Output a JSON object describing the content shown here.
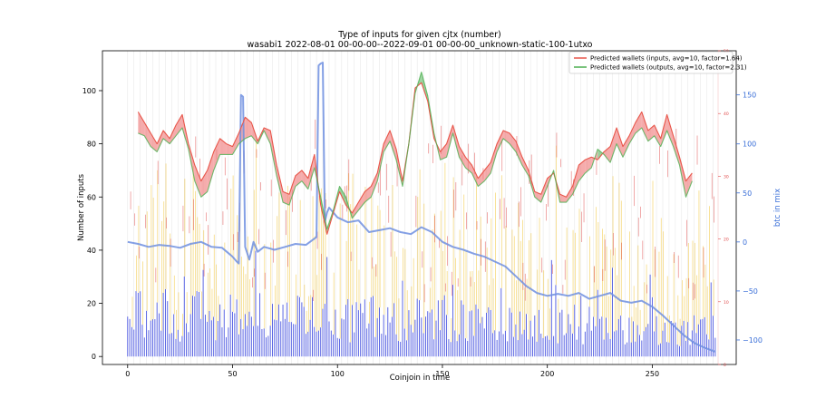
{
  "chart_data": {
    "type": "line",
    "title": "Type of inputs for given cjtx (number)",
    "subtitle": "wasabi1 2022-08-01 00-00-00--2022-09-01 00-00-00_unknown-static-100-1utxo",
    "xlabel": "Coinjoin in time",
    "ylabel": "Number of inputs",
    "y2label": "btc in mix",
    "xlim": [
      -12,
      290
    ],
    "ylim": [
      -3,
      115
    ],
    "y2lim": [
      -125,
      195
    ],
    "y3lim": [
      0,
      50
    ],
    "xticks": [
      0,
      50,
      100,
      150,
      200,
      250
    ],
    "yticks": [
      0,
      20,
      40,
      60,
      80,
      100
    ],
    "y2ticks": [
      -100,
      -50,
      0,
      50,
      100,
      150
    ],
    "y2ticklabels": [
      "−100",
      "−50",
      "0",
      "50",
      "100",
      "150"
    ],
    "y3ticks": [
      0,
      10,
      20,
      30,
      40,
      50
    ],
    "legend_position": "top-right",
    "series": [
      {
        "name": "Predicted wallets (inputs, avg=10, factor=1.64)",
        "color": "#e8564a",
        "x": [
          5,
          8,
          11,
          14,
          17,
          20,
          23,
          26,
          29,
          32,
          35,
          38,
          41,
          44,
          47,
          50,
          53,
          56,
          59,
          62,
          65,
          68,
          71,
          74,
          77,
          80,
          83,
          86,
          89,
          92,
          95,
          98,
          101,
          104,
          107,
          110,
          113,
          116,
          119,
          122,
          125,
          128,
          131,
          134,
          137,
          140,
          143,
          146,
          149,
          152,
          155,
          158,
          161,
          164,
          167,
          170,
          173,
          176,
          179,
          182,
          185,
          188,
          191,
          194,
          197,
          200,
          203,
          206,
          209,
          212,
          215,
          218,
          221,
          224,
          227,
          230,
          233,
          236,
          239,
          242,
          245,
          248,
          251,
          254,
          257,
          260,
          263,
          266,
          269
        ],
        "y": [
          92,
          88,
          84,
          80,
          85,
          82,
          87,
          91,
          80,
          72,
          66,
          70,
          77,
          82,
          80,
          79,
          84,
          90,
          88,
          81,
          86,
          85,
          72,
          62,
          61,
          68,
          70,
          67,
          76,
          57,
          46,
          54,
          62,
          57,
          54,
          58,
          62,
          64,
          69,
          80,
          85,
          78,
          66,
          80,
          101,
          103,
          96,
          82,
          77,
          80,
          87,
          79,
          75,
          72,
          67,
          70,
          73,
          80,
          85,
          84,
          81,
          75,
          70,
          62,
          61,
          67,
          69,
          61,
          60,
          64,
          72,
          74,
          75,
          74,
          77,
          79,
          86,
          79,
          83,
          88,
          92,
          85,
          87,
          82,
          91,
          83,
          75,
          66,
          69
        ]
      },
      {
        "name": "Predicted wallets (outputs, avg=10, factor=2.31)",
        "color": "#4caf50",
        "x": [
          5,
          8,
          11,
          14,
          17,
          20,
          23,
          26,
          29,
          32,
          35,
          38,
          41,
          44,
          47,
          50,
          53,
          56,
          59,
          62,
          65,
          68,
          71,
          74,
          77,
          80,
          83,
          86,
          89,
          92,
          95,
          98,
          101,
          104,
          107,
          110,
          113,
          116,
          119,
          122,
          125,
          128,
          131,
          134,
          137,
          140,
          143,
          146,
          149,
          152,
          155,
          158,
          161,
          164,
          167,
          170,
          173,
          176,
          179,
          182,
          185,
          188,
          191,
          194,
          197,
          200,
          203,
          206,
          209,
          212,
          215,
          218,
          221,
          224,
          227,
          230,
          233,
          236,
          239,
          242,
          245,
          248,
          251,
          254,
          257,
          260,
          263,
          266,
          269
        ],
        "y": [
          84,
          83,
          79,
          77,
          82,
          80,
          83,
          86,
          78,
          66,
          60,
          62,
          70,
          76,
          76,
          76,
          80,
          82,
          83,
          80,
          85,
          80,
          68,
          58,
          57,
          64,
          66,
          63,
          71,
          60,
          48,
          55,
          64,
          60,
          52,
          55,
          58,
          60,
          66,
          77,
          81,
          74,
          64,
          80,
          99,
          107,
          98,
          84,
          74,
          75,
          84,
          75,
          71,
          69,
          64,
          66,
          69,
          77,
          82,
          80,
          77,
          72,
          68,
          60,
          58,
          64,
          70,
          58,
          58,
          61,
          66,
          69,
          71,
          78,
          76,
          73,
          80,
          75,
          80,
          84,
          86,
          81,
          83,
          79,
          85,
          79,
          72,
          60,
          66
        ]
      },
      {
        "name": "btc in mix",
        "color": "#6f8fe0",
        "x": [
          0,
          5,
          10,
          15,
          20,
          25,
          30,
          35,
          40,
          45,
          50,
          52,
          53,
          54,
          55,
          56,
          58,
          60,
          62,
          65,
          70,
          75,
          80,
          85,
          90,
          91,
          92,
          93,
          94,
          95,
          96,
          100,
          105,
          110,
          115,
          120,
          125,
          130,
          135,
          140,
          145,
          150,
          155,
          160,
          165,
          170,
          175,
          180,
          185,
          190,
          195,
          200,
          205,
          210,
          215,
          220,
          225,
          230,
          235,
          240,
          245,
          250,
          255,
          260,
          265,
          270,
          275,
          280
        ],
        "y": [
          0,
          -2,
          -5,
          -3,
          -4,
          -6,
          -2,
          0,
          -5,
          -6,
          -15,
          -20,
          -22,
          150,
          148,
          -5,
          -18,
          0,
          -10,
          -5,
          -8,
          -5,
          -2,
          -3,
          5,
          180,
          182,
          183,
          20,
          30,
          35,
          25,
          20,
          22,
          10,
          12,
          14,
          10,
          8,
          15,
          10,
          0,
          -5,
          -8,
          -12,
          -15,
          -20,
          -25,
          -35,
          -45,
          -52,
          -55,
          -53,
          -55,
          -52,
          -58,
          -55,
          -52,
          -60,
          -62,
          -60,
          -66,
          -75,
          -85,
          -95,
          -103,
          -108,
          -112
        ]
      }
    ],
    "bars": {
      "blue_color": "#4a56e0",
      "yellow_color": "#f5d46a",
      "red_color": "#e04c4c",
      "count": 281
    }
  }
}
